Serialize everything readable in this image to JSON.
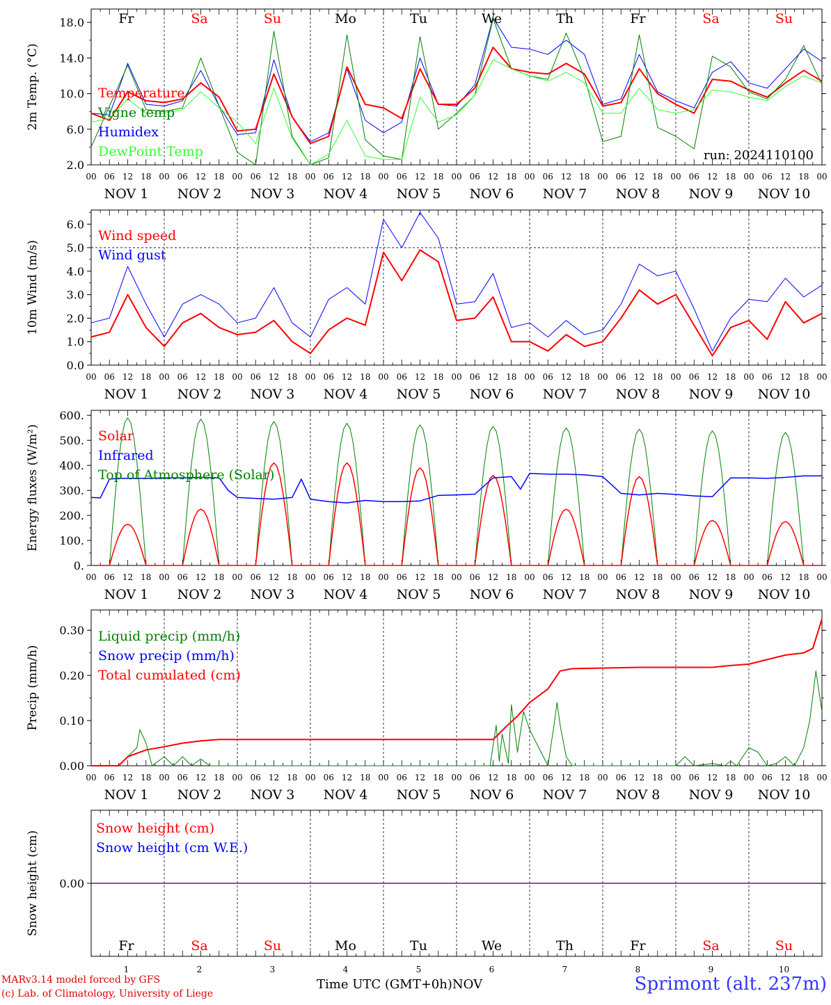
{
  "colors": {
    "red": "#ff0000",
    "darkgreen": "#008000",
    "blue": "#0000ff",
    "lightgreen": "#33ff33",
    "purple": "#8000a0",
    "weekend": "#ff0000"
  },
  "day_names": [
    "Fr",
    "Sa",
    "Su",
    "Mo",
    "Tu",
    "We",
    "Th",
    "Fr",
    "Sa",
    "Su"
  ],
  "day_weekend": [
    false,
    true,
    true,
    false,
    false,
    false,
    false,
    false,
    true,
    true
  ],
  "hour_labels": [
    "00",
    "06",
    "12",
    "18"
  ],
  "date_labels": [
    "NOV 1",
    "NOV 2",
    "NOV 3",
    "NOV 4",
    "NOV 5",
    "NOV 6",
    "NOV 7",
    "NOV 8",
    "NOV 9",
    "NOV 10"
  ],
  "bottom_day_numbers": [
    "1",
    "2",
    "3",
    "4",
    "5",
    "6",
    "7",
    "8",
    "9",
    "10"
  ],
  "month_label": "NOV",
  "footer": {
    "xlabel": "Time UTC (GMT+0h)",
    "credit_line1": "MARv3.14 model forced by GFS",
    "credit_line2": "(c) Lab. of Climatology, University of Liege",
    "station": "Sprimont (alt. 237m)"
  },
  "chart_data": [
    {
      "type": "line",
      "ylabel": "2m Temp. (°C)",
      "ylim": [
        2,
        19.5
      ],
      "yticks": [
        2,
        6,
        10,
        14,
        18
      ],
      "ytick_labels": [
        "2.0",
        "6.0",
        "10.0",
        "14.0",
        "18.0"
      ],
      "annotation": "run: 2024110100",
      "legend": [
        {
          "label": "Temperature",
          "color": "#ff0000"
        },
        {
          "label": "Vigne temp",
          "color": "#008000"
        },
        {
          "label": "Humidex",
          "color": "#0000ff"
        },
        {
          "label": "DewPoint Temp",
          "color": "#33ff33"
        }
      ],
      "series": [
        {
          "name": "Humidex",
          "color": "#0000ff",
          "width": 1,
          "x": [
            0,
            6,
            12,
            18,
            24,
            30,
            36,
            42,
            48,
            54,
            60,
            66,
            72,
            78,
            84,
            90,
            96,
            102,
            108,
            114,
            120,
            126,
            132,
            138,
            144,
            150,
            156,
            162,
            168,
            174,
            180,
            186,
            192,
            198,
            204,
            210,
            216,
            222,
            228,
            234,
            240
          ],
          "y": [
            7.8,
            7.6,
            13.4,
            8.8,
            8.6,
            9.2,
            12.6,
            8.6,
            5.4,
            5.6,
            13.8,
            7.4,
            4.6,
            5.6,
            12.8,
            7.0,
            5.6,
            6.8,
            14.0,
            8.8,
            8.6,
            11.0,
            18.5,
            15.2,
            15.0,
            14.4,
            16.0,
            14.4,
            8.8,
            9.4,
            14.4,
            10.2,
            9.2,
            8.4,
            12.4,
            13.6,
            11.2,
            10.6,
            12.8,
            15.0,
            13.6
          ]
        },
        {
          "name": "Temperature",
          "color": "#ff0000",
          "width": 2,
          "x": [
            0,
            6,
            12,
            18,
            24,
            30,
            36,
            42,
            48,
            54,
            60,
            66,
            72,
            78,
            84,
            90,
            96,
            102,
            108,
            114,
            120,
            126,
            132,
            138,
            144,
            150,
            156,
            162,
            168,
            174,
            180,
            186,
            192,
            198,
            204,
            210,
            216,
            222,
            228,
            234,
            240
          ],
          "y": [
            7.8,
            7.0,
            10.2,
            9.2,
            9.0,
            9.4,
            11.2,
            9.6,
            5.8,
            6.0,
            12.2,
            7.4,
            4.4,
            5.2,
            13.0,
            8.8,
            8.4,
            7.2,
            12.8,
            8.8,
            8.8,
            10.6,
            15.2,
            12.8,
            12.4,
            12.2,
            13.4,
            12.2,
            8.6,
            9.0,
            12.8,
            10.0,
            8.8,
            7.8,
            11.6,
            11.4,
            10.4,
            9.6,
            11.2,
            12.6,
            11.4
          ]
        },
        {
          "name": "Vigne temp",
          "color": "#008000",
          "width": 1,
          "x": [
            0,
            6,
            12,
            18,
            24,
            30,
            36,
            42,
            48,
            54,
            60,
            66,
            72,
            78,
            84,
            90,
            96,
            102,
            108,
            114,
            120,
            126,
            132,
            138,
            144,
            150,
            156,
            162,
            168,
            174,
            180,
            186,
            192,
            198,
            204,
            210,
            216,
            222,
            228,
            234,
            240
          ],
          "y": [
            4.0,
            8.6,
            13.2,
            8.2,
            8.0,
            8.4,
            14.0,
            8.6,
            3.4,
            1.8,
            17.0,
            5.2,
            1.2,
            2.8,
            16.6,
            4.8,
            3.0,
            2.6,
            16.4,
            6.0,
            7.8,
            9.8,
            18.4,
            12.8,
            12.0,
            11.6,
            16.8,
            11.8,
            4.6,
            5.2,
            16.6,
            6.2,
            5.2,
            3.8,
            14.2,
            13.0,
            10.2,
            9.4,
            11.6,
            15.4,
            11.0
          ]
        },
        {
          "name": "DewPoint Temp",
          "color": "#33ff33",
          "width": 1,
          "x": [
            0,
            6,
            12,
            18,
            24,
            30,
            36,
            42,
            48,
            54,
            60,
            66,
            72,
            78,
            84,
            90,
            96,
            102,
            108,
            114,
            120,
            126,
            132,
            138,
            144,
            150,
            156,
            162,
            168,
            174,
            180,
            186,
            192,
            198,
            204,
            210,
            216,
            222,
            228,
            234,
            240
          ],
          "y": [
            6.8,
            7.2,
            9.4,
            7.8,
            7.8,
            8.2,
            10.2,
            8.4,
            6.8,
            4.4,
            10.6,
            5.0,
            2.0,
            3.2,
            7.0,
            3.0,
            2.6,
            2.6,
            9.6,
            6.8,
            7.6,
            9.8,
            13.8,
            12.8,
            12.0,
            11.4,
            12.4,
            11.2,
            7.8,
            7.8,
            10.6,
            8.2,
            7.8,
            8.2,
            10.4,
            10.2,
            9.6,
            9.2,
            10.8,
            12.0,
            11.2
          ]
        }
      ]
    },
    {
      "type": "line",
      "ylabel": "10m Wind (m/s)",
      "ylim": [
        0,
        6.6
      ],
      "yticks": [
        0,
        1,
        2,
        3,
        4,
        5,
        6
      ],
      "ytick_labels": [
        "0.0",
        "1.0",
        "2.0",
        "3.0",
        "4.0",
        "5.0",
        "6.0"
      ],
      "hline": 5.0,
      "legend": [
        {
          "label": "Wind speed",
          "color": "#ff0000"
        },
        {
          "label": "Wind gust",
          "color": "#0000ff"
        }
      ],
      "series": [
        {
          "name": "Wind gust",
          "color": "#0000ff",
          "width": 1,
          "x": [
            0,
            6,
            12,
            18,
            24,
            30,
            36,
            42,
            48,
            54,
            60,
            66,
            72,
            78,
            84,
            90,
            96,
            102,
            108,
            114,
            120,
            126,
            132,
            138,
            144,
            150,
            156,
            162,
            168,
            174,
            180,
            186,
            192,
            198,
            204,
            210,
            216,
            222,
            228,
            234,
            240
          ],
          "y": [
            1.8,
            2.0,
            4.2,
            2.6,
            1.2,
            2.6,
            3.0,
            2.6,
            1.8,
            2.0,
            3.3,
            1.8,
            1.2,
            2.8,
            3.3,
            2.6,
            6.2,
            5.0,
            6.5,
            5.4,
            2.6,
            2.7,
            3.9,
            1.6,
            1.8,
            1.2,
            1.9,
            1.3,
            1.5,
            2.6,
            4.3,
            3.8,
            4.0,
            2.4,
            0.6,
            2.0,
            2.8,
            2.7,
            3.7,
            2.9,
            3.4
          ]
        },
        {
          "name": "Wind speed",
          "color": "#ff0000",
          "width": 2,
          "x": [
            0,
            6,
            12,
            18,
            24,
            30,
            36,
            42,
            48,
            54,
            60,
            66,
            72,
            78,
            84,
            90,
            96,
            102,
            108,
            114,
            120,
            126,
            132,
            138,
            144,
            150,
            156,
            162,
            168,
            174,
            180,
            186,
            192,
            198,
            204,
            210,
            216,
            222,
            228,
            234,
            240
          ],
          "y": [
            1.2,
            1.4,
            3.0,
            1.6,
            0.8,
            1.8,
            2.2,
            1.6,
            1.3,
            1.4,
            1.9,
            1.0,
            0.5,
            1.5,
            2.0,
            1.7,
            4.8,
            3.6,
            4.9,
            4.4,
            1.9,
            2.0,
            2.9,
            1.0,
            1.0,
            0.6,
            1.3,
            0.8,
            1.0,
            2.0,
            3.2,
            2.6,
            3.0,
            1.7,
            0.4,
            1.6,
            1.9,
            1.1,
            2.7,
            1.8,
            2.2
          ]
        }
      ]
    },
    {
      "type": "line",
      "ylabel": "Energy fluxes (W/m²)",
      "ylim": [
        0,
        620
      ],
      "yticks": [
        0,
        100,
        200,
        300,
        400,
        500,
        600
      ],
      "ytick_labels": [
        "0.",
        "100.",
        "200.",
        "300.",
        "400.",
        "500.",
        "600."
      ],
      "legend": [
        {
          "label": "Solar",
          "color": "#ff0000"
        },
        {
          "label": "Infrared",
          "color": "#0000ff"
        },
        {
          "label": "Top of Atmosphere (Solar)",
          "color": "#008000"
        }
      ],
      "series": [
        {
          "name": "Top of Atmosphere (Solar)",
          "color": "#008000",
          "width": 1,
          "diurnal": true,
          "peaks": [
            590,
            585,
            575,
            568,
            562,
            556,
            550,
            545,
            538,
            532
          ]
        },
        {
          "name": "Solar",
          "color": "#ff0000",
          "width": 1.5,
          "diurnal": true,
          "peaks": [
            165,
            225,
            410,
            410,
            390,
            360,
            225,
            355,
            180,
            175
          ]
        },
        {
          "name": "Infrared",
          "color": "#0000ff",
          "width": 1.5,
          "x": [
            0,
            3,
            6,
            9,
            12,
            18,
            24,
            30,
            36,
            42,
            45,
            48,
            54,
            60,
            66,
            69,
            72,
            78,
            84,
            90,
            96,
            102,
            108,
            114,
            120,
            126,
            132,
            138,
            141,
            144,
            150,
            156,
            162,
            168,
            174,
            180,
            186,
            192,
            198,
            204,
            210,
            216,
            222,
            228,
            234,
            240
          ],
          "y": [
            272,
            270,
            345,
            348,
            348,
            348,
            350,
            350,
            352,
            350,
            300,
            272,
            268,
            265,
            272,
            345,
            265,
            255,
            250,
            260,
            255,
            255,
            258,
            280,
            282,
            285,
            350,
            355,
            305,
            368,
            365,
            365,
            362,
            355,
            288,
            282,
            288,
            284,
            278,
            275,
            350,
            350,
            348,
            352,
            358,
            358
          ]
        }
      ]
    },
    {
      "type": "line",
      "ylabel": "Precip (mm/h)",
      "ylim": [
        0,
        0.345
      ],
      "yticks": [
        0,
        0.1,
        0.2,
        0.3
      ],
      "ytick_labels": [
        "0.00",
        "0.10",
        "0.20",
        "0.30"
      ],
      "legend": [
        {
          "label": "Liquid precip (mm/h)",
          "color": "#008000"
        },
        {
          "label": "Snow precip (mm/h)",
          "color": "#0000ff"
        },
        {
          "label": "Total cumulated (cm)",
          "color": "#ff0000"
        }
      ],
      "series": [
        {
          "name": "Liquid precip (mm/h)",
          "color": "#008000",
          "width": 1,
          "x": [
            0,
            9,
            12,
            15,
            16,
            18,
            20,
            24,
            27,
            30,
            33,
            36,
            39,
            42,
            48,
            120,
            131,
            133,
            134,
            135,
            137,
            138,
            140,
            142,
            144,
            147,
            150,
            152,
            153,
            154,
            156,
            158,
            180,
            192,
            195,
            198,
            204,
            208,
            210,
            212,
            216,
            219,
            222,
            225,
            228,
            231,
            234,
            236,
            238,
            240
          ],
          "y": [
            0,
            0,
            0.02,
            0.04,
            0.08,
            0.05,
            0,
            0.02,
            0,
            0.02,
            0,
            0.015,
            0,
            0,
            0,
            0,
            0,
            0.09,
            0.01,
            0.07,
            0.005,
            0.135,
            0.03,
            0.12,
            0.08,
            0.04,
            0,
            0.09,
            0.14,
            0.09,
            0.02,
            0,
            0,
            0,
            0.02,
            0,
            0.005,
            0,
            0.01,
            0,
            0.04,
            0.03,
            0,
            0.005,
            0.02,
            0,
            0.04,
            0.1,
            0.21,
            0.12
          ]
        },
        {
          "name": "Total cumulated (cm)",
          "color": "#ff0000",
          "width": 2,
          "x": [
            0,
            9,
            12,
            18,
            24,
            30,
            36,
            42,
            48,
            60,
            96,
            120,
            132,
            136,
            140,
            144,
            150,
            154,
            158,
            180,
            192,
            204,
            210,
            216,
            222,
            228,
            234,
            237,
            240
          ],
          "y": [
            0,
            0,
            0.02,
            0.035,
            0.042,
            0.05,
            0.055,
            0.058,
            0.058,
            0.058,
            0.058,
            0.058,
            0.058,
            0.085,
            0.11,
            0.14,
            0.17,
            0.21,
            0.215,
            0.218,
            0.218,
            0.218,
            0.222,
            0.225,
            0.235,
            0.245,
            0.25,
            0.26,
            0.325
          ]
        }
      ]
    },
    {
      "type": "line",
      "ylabel": "Snow height (cm)",
      "ylim": [
        -1,
        1
      ],
      "yticks": [
        0
      ],
      "ytick_labels": [
        "0.00"
      ],
      "legend": [
        {
          "label": "Snow height (cm)",
          "color": "#ff0000"
        },
        {
          "label": "Snow height (cm W.E.)",
          "color": "#0000ff"
        }
      ],
      "series": [
        {
          "name": "Snow height (cm W.E.)",
          "color": "#8000a0",
          "width": 1.5,
          "x": [
            0,
            240
          ],
          "y": [
            0,
            0
          ]
        }
      ]
    }
  ]
}
